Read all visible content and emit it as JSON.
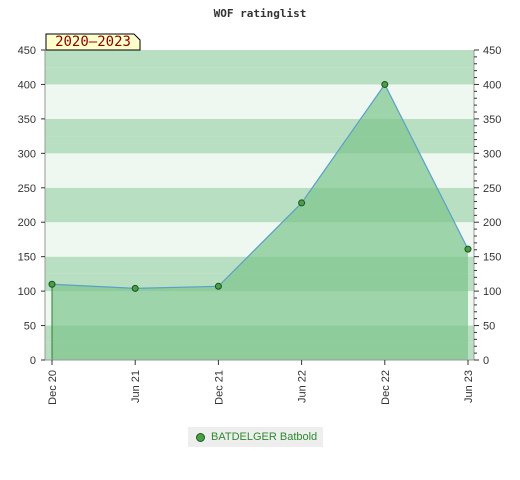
{
  "page_title": "WOF ratinglist",
  "badge": "2020–2023",
  "chart_data": {
    "type": "area",
    "title": "WOF ratinglist",
    "xlabel": "",
    "ylabel": "",
    "x_ticks": [
      "Dec 20",
      "Jun 21",
      "Dec 21",
      "Jun 22",
      "Dec 22",
      "Jun 23"
    ],
    "y_ticks": [
      0,
      50,
      100,
      150,
      200,
      250,
      300,
      350,
      400,
      450
    ],
    "ylim": [
      0,
      450
    ],
    "grid": true,
    "legend_position": "bottom",
    "series": [
      {
        "name": "BATDELGER Batbold",
        "x": [
          "Dec 20",
          "Jun 21",
          "Dec 21",
          "Jun 22",
          "Dec 22",
          "Jun 23"
        ],
        "values": [
          110,
          104,
          107,
          228,
          400,
          161
        ]
      }
    ]
  },
  "colors": {
    "area_fill": "#7cc48a",
    "line": "#5aa0c8",
    "marker": "#46a046",
    "band_dark": "#b9dfc2",
    "band_light": "#eef7f0"
  }
}
